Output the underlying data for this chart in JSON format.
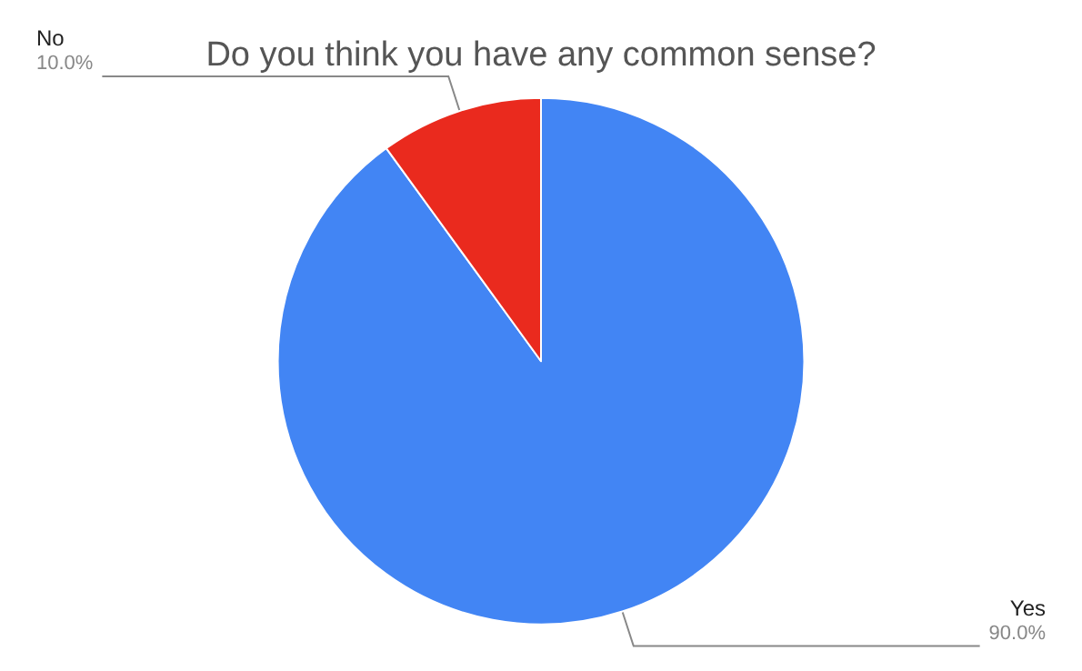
{
  "chart_data": {
    "type": "pie",
    "title": "Do you think you have any common sense?",
    "categories": [
      "Yes",
      "No"
    ],
    "values": [
      90,
      10
    ],
    "value_labels": [
      "90.0%",
      "10.0%"
    ],
    "colors": [
      "#4285f4",
      "#ea2a1e"
    ],
    "legend": false
  }
}
